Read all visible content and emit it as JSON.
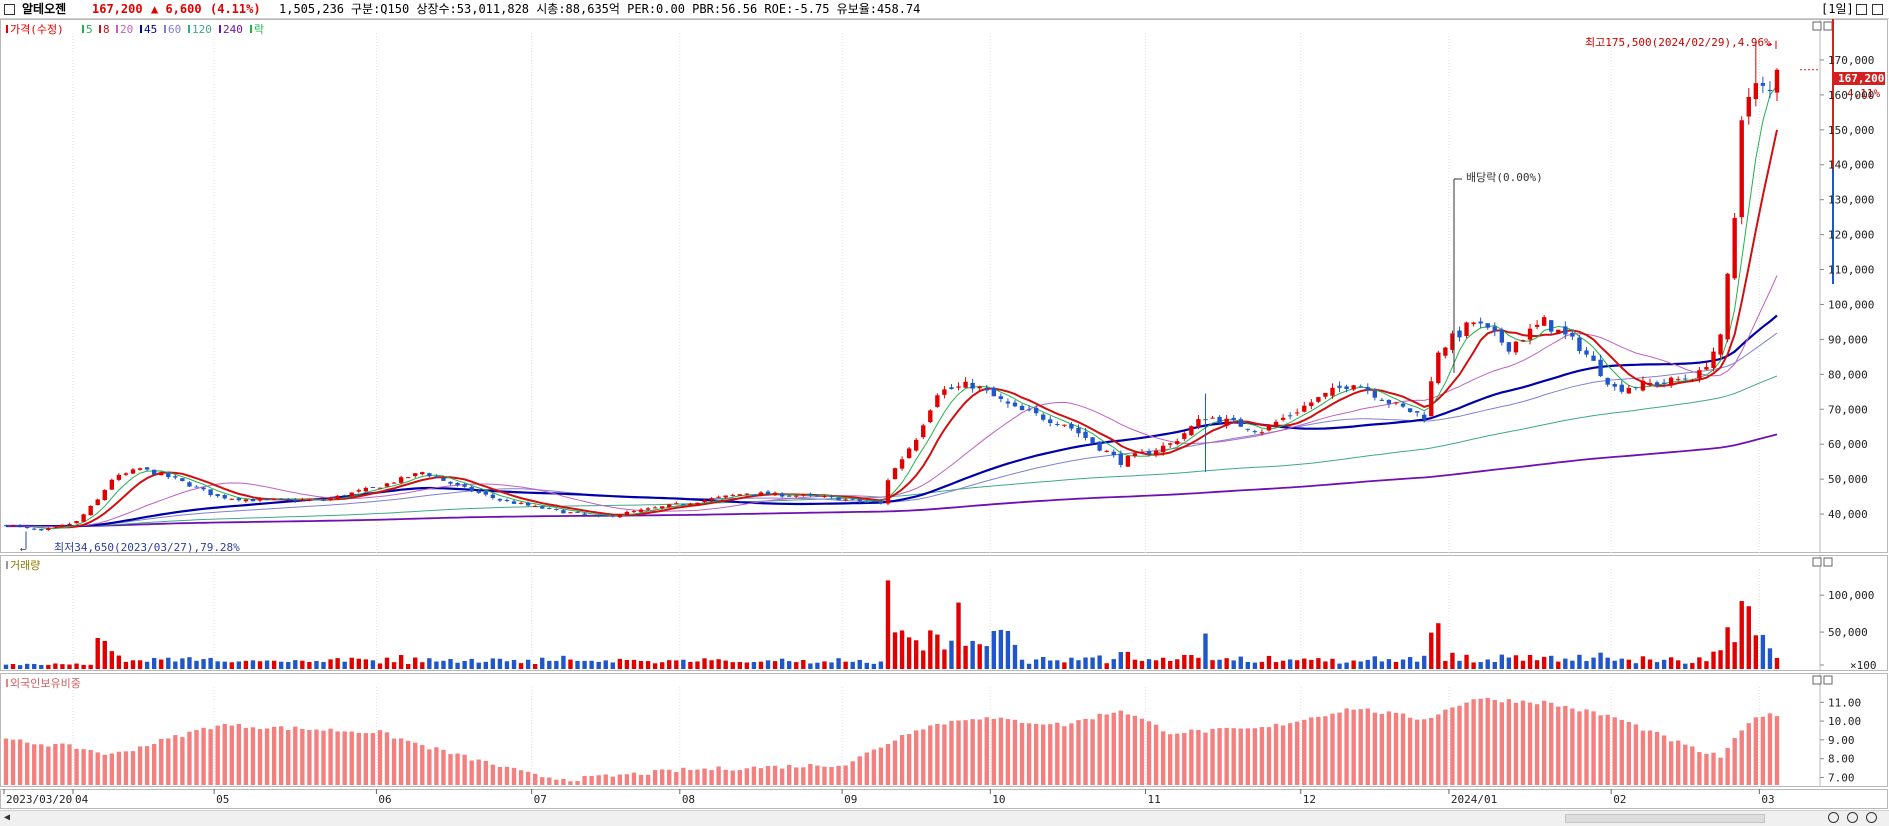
{
  "header": {
    "name": "알테오젠",
    "price": "167,200",
    "change": "▲ 6,600",
    "change_pct": "(4.11%)",
    "volume": "1,505,236",
    "info": "구분:Q150 상장수:53,011,828 시총:88,635억 PER:0.00 PBR:56.56 ROE:-5.75 유보율:458.74",
    "period": "[1일]"
  },
  "colors": {
    "up": "#e00000",
    "down": "#1f56c9",
    "ma5": "#22b14c",
    "ma8": "#d01010",
    "ma20": "#c060c0",
    "ma45": "#0000a8",
    "ma60": "#8080d0",
    "ma120": "#40a888",
    "ma240": "#7010b0",
    "foreign": "#f47f7f"
  },
  "price_panel": {
    "legend": [
      {
        "label": "가격(수정)",
        "color": "#e00000"
      },
      {
        "label": "5",
        "color": "#22b14c"
      },
      {
        "label": "8",
        "color": "#d01010"
      },
      {
        "label": "20",
        "color": "#c060c0"
      },
      {
        "label": "45",
        "color": "#0000a8"
      },
      {
        "label": "60",
        "color": "#8080d0"
      },
      {
        "label": "120",
        "color": "#40a888"
      },
      {
        "label": "240",
        "color": "#7010b0"
      },
      {
        "label": "락",
        "color": "#22b14c"
      }
    ],
    "high_annotation": "최고175,500(2024/02/29),4.96%",
    "low_annotation": "최저34,650(2023/03/27),79.28%",
    "dividend_annotation": "배당락(0.00%)",
    "price_tag": "167,200",
    "pct_tag": "4.11%",
    "yticks": [
      "170,000",
      "160,000",
      "150,000",
      "140,000",
      "130,000",
      "120,000",
      "110,000",
      "100,000",
      "90,000",
      "80,000",
      "70,000",
      "60,000",
      "50,000",
      "40,000"
    ]
  },
  "volume_panel": {
    "legend": "거래량",
    "yticks": [
      "100,000",
      "50,000",
      "×100"
    ]
  },
  "foreign_panel": {
    "legend": "외국인보유비중",
    "yticks": [
      "11.00",
      "10.00",
      "9.00",
      "8.00",
      "7.00"
    ]
  },
  "xaxis": {
    "labels": [
      "2023/03/20",
      "04",
      "05",
      "06",
      "07",
      "08",
      "09",
      "10",
      "11",
      "12",
      "2024/01",
      "02",
      "03"
    ]
  },
  "chart_data": [
    {
      "type": "candlestick",
      "title": "가격(수정)",
      "x_range": [
        "2023/03/20",
        "2024/03/05"
      ],
      "ylim": [
        34000,
        176000
      ],
      "anchor_closes": [
        [
          "2023/03/20",
          37000
        ],
        [
          "2023/03/27",
          35000
        ],
        [
          "2023/04/03",
          37800
        ],
        [
          "2023/04/06",
          44000
        ],
        [
          "2023/04/10",
          50000
        ],
        [
          "2023/04/14",
          53000
        ],
        [
          "2023/04/21",
          50000
        ],
        [
          "2023/05/01",
          45000
        ],
        [
          "2023/05/08",
          44000
        ],
        [
          "2023/05/22",
          44000
        ],
        [
          "2023/06/01",
          48000
        ],
        [
          "2023/06/09",
          52000
        ],
        [
          "2023/06/16",
          48000
        ],
        [
          "2023/06/26",
          44000
        ],
        [
          "2023/07/03",
          42000
        ],
        [
          "2023/07/14",
          39000
        ],
        [
          "2023/07/24",
          41000
        ],
        [
          "2023/08/01",
          43000
        ],
        [
          "2023/08/14",
          46000
        ],
        [
          "2023/08/28",
          45000
        ],
        [
          "2023/09/08",
          43000
        ],
        [
          "2023/09/11",
          50000
        ],
        [
          "2023/09/15",
          62000
        ],
        [
          "2023/09/20",
          75000
        ],
        [
          "2023/09/27",
          77000
        ],
        [
          "2023/10/05",
          70000
        ],
        [
          "2023/10/16",
          66000
        ],
        [
          "2023/10/26",
          55000
        ],
        [
          "2023/11/06",
          60000
        ],
        [
          "2023/11/13",
          68000
        ],
        [
          "2023/11/23",
          64000
        ],
        [
          "2023/12/04",
          72000
        ],
        [
          "2023/12/12",
          78000
        ],
        [
          "2023/12/20",
          71000
        ],
        [
          "2023/12/26",
          68000
        ],
        [
          "2023/12/28",
          87000
        ],
        [
          "2024/01/04",
          95000
        ],
        [
          "2024/01/11",
          88000
        ],
        [
          "2024/01/18",
          95000
        ],
        [
          "2024/01/25",
          88000
        ],
        [
          "2024/02/01",
          76000
        ],
        [
          "2024/02/13",
          78000
        ],
        [
          "2024/02/19",
          80000
        ],
        [
          "2024/02/22",
          90000
        ],
        [
          "2024/02/26",
          125000
        ],
        [
          "2024/02/27",
          155000
        ],
        [
          "2024/02/29",
          162000
        ],
        [
          "2024/03/04",
          160600
        ],
        [
          "2024/03/05",
          167200
        ]
      ]
    },
    {
      "type": "bar",
      "title": "거래량",
      "unit": "×100",
      "ylim": [
        0,
        130000
      ],
      "note": "volume shape follows price spikes; largest bars near 2023/09/11 and 2024/02/27"
    },
    {
      "type": "bar",
      "title": "외국인보유비중",
      "ylim": [
        6.6,
        11.6
      ],
      "anchor_values": [
        [
          "2023/03/20",
          9.0
        ],
        [
          "2023/04/03",
          8.6
        ],
        [
          "2023/04/10",
          8.2
        ],
        [
          "2023/05/01",
          9.8
        ],
        [
          "2023/06/01",
          9.4
        ],
        [
          "2023/06/09",
          8.7
        ],
        [
          "2023/07/03",
          7.1
        ],
        [
          "2023/07/10",
          6.9
        ],
        [
          "2023/08/01",
          7.4
        ],
        [
          "2023/09/01",
          7.7
        ],
        [
          "2023/09/15",
          9.6
        ],
        [
          "2023/09/27",
          10.2
        ],
        [
          "2023/10/16",
          9.8
        ],
        [
          "2023/10/26",
          10.6
        ],
        [
          "2023/11/06",
          9.4
        ],
        [
          "2023/11/23",
          9.6
        ],
        [
          "2023/12/12",
          10.7
        ],
        [
          "2023/12/26",
          10.1
        ],
        [
          "2024/01/04",
          11.2
        ],
        [
          "2024/01/18",
          11.0
        ],
        [
          "2024/02/01",
          10.2
        ],
        [
          "2024/02/19",
          8.4
        ],
        [
          "2024/02/22",
          8.1
        ],
        [
          "2024/02/29",
          10.3
        ],
        [
          "2024/03/05",
          10.3
        ]
      ]
    }
  ]
}
